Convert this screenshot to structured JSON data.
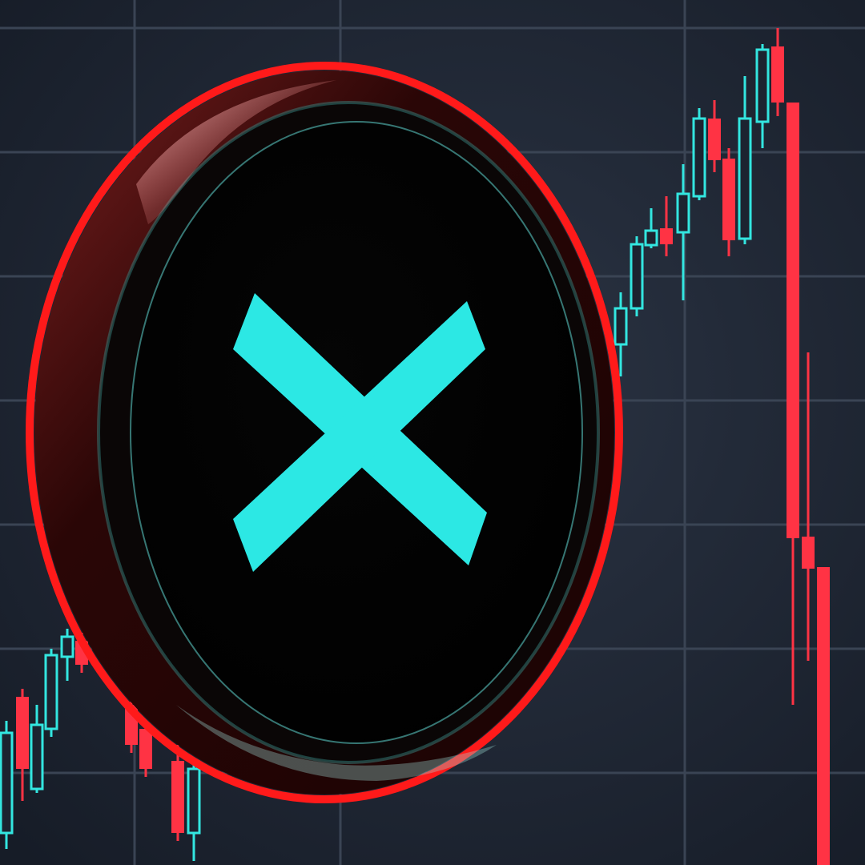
{
  "scene": {
    "subject": "crypto-coin-with-x-logo",
    "logo_icon": "x-cross-icon",
    "colors": {
      "background": "#1c2330",
      "grid": "#3a4454",
      "bull_candle": "#33e6e0",
      "bear_candle": "#ff3344",
      "coin_face": "#000000",
      "coin_outline": "#ff1a1a",
      "logo": "#2ce8e4",
      "coin_rim": "#2a0808"
    },
    "trend": "rally-then-crash"
  }
}
